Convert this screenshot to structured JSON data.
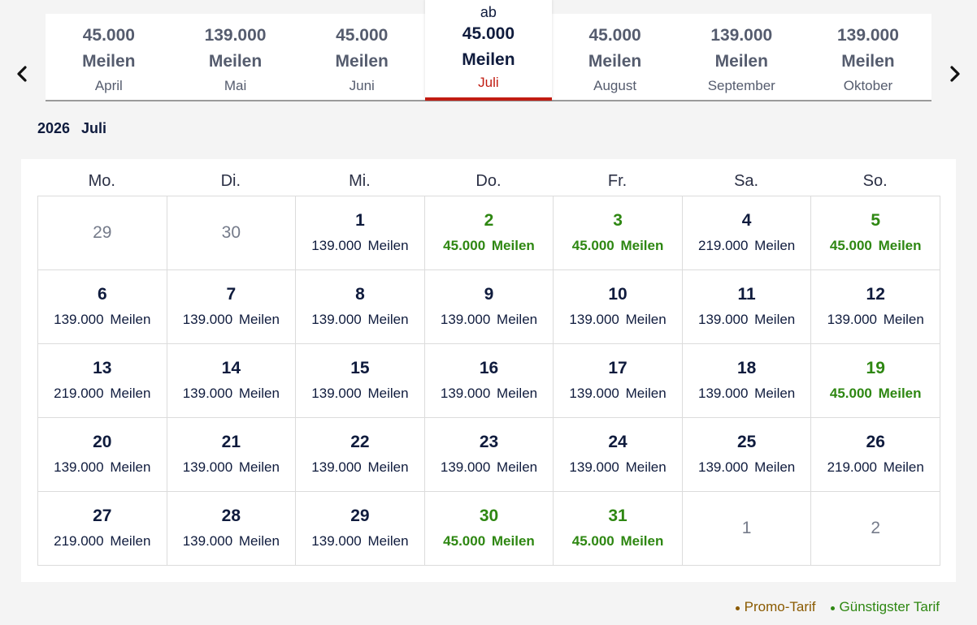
{
  "carousel": {
    "prev_icon": "chevron-left-icon",
    "next_icon": "chevron-right-icon",
    "months": [
      {
        "miles": "45.000",
        "unit": "Meilen",
        "month": "April"
      },
      {
        "miles": "139.000",
        "unit": "Meilen",
        "month": "Mai"
      },
      {
        "miles": "45.000",
        "unit": "Meilen",
        "month": "Juni"
      },
      {
        "prefix": "ab",
        "miles": "45.000",
        "unit": "Meilen",
        "month": "Juli",
        "active": true
      },
      {
        "miles": "45.000",
        "unit": "Meilen",
        "month": "August"
      },
      {
        "miles": "139.000",
        "unit": "Meilen",
        "month": "September"
      },
      {
        "miles": "139.000",
        "unit": "Meilen",
        "month": "Oktober"
      }
    ]
  },
  "calendar": {
    "year": "2026",
    "month": "Juli",
    "weekdays": [
      "Mo.",
      "Di.",
      "Mi.",
      "Do.",
      "Fr.",
      "Sa.",
      "So."
    ],
    "days": [
      {
        "day": "29",
        "other": true
      },
      {
        "day": "30",
        "other": true
      },
      {
        "day": "1",
        "price": "139.000 Meilen"
      },
      {
        "day": "2",
        "price": "45.000 Meilen",
        "cheap": true
      },
      {
        "day": "3",
        "price": "45.000 Meilen",
        "cheap": true
      },
      {
        "day": "4",
        "price": "219.000 Meilen"
      },
      {
        "day": "5",
        "price": "45.000 Meilen",
        "cheap": true
      },
      {
        "day": "6",
        "price": "139.000 Meilen"
      },
      {
        "day": "7",
        "price": "139.000 Meilen"
      },
      {
        "day": "8",
        "price": "139.000 Meilen"
      },
      {
        "day": "9",
        "price": "139.000 Meilen"
      },
      {
        "day": "10",
        "price": "139.000 Meilen"
      },
      {
        "day": "11",
        "price": "139.000 Meilen"
      },
      {
        "day": "12",
        "price": "139.000 Meilen"
      },
      {
        "day": "13",
        "price": "219.000 Meilen"
      },
      {
        "day": "14",
        "price": "139.000 Meilen"
      },
      {
        "day": "15",
        "price": "139.000 Meilen"
      },
      {
        "day": "16",
        "price": "139.000 Meilen"
      },
      {
        "day": "17",
        "price": "139.000 Meilen"
      },
      {
        "day": "18",
        "price": "139.000 Meilen"
      },
      {
        "day": "19",
        "price": "45.000 Meilen",
        "cheap": true
      },
      {
        "day": "20",
        "price": "139.000 Meilen"
      },
      {
        "day": "21",
        "price": "139.000 Meilen"
      },
      {
        "day": "22",
        "price": "139.000 Meilen"
      },
      {
        "day": "23",
        "price": "139.000 Meilen"
      },
      {
        "day": "24",
        "price": "139.000 Meilen"
      },
      {
        "day": "25",
        "price": "139.000 Meilen"
      },
      {
        "day": "26",
        "price": "219.000 Meilen"
      },
      {
        "day": "27",
        "price": "219.000 Meilen"
      },
      {
        "day": "28",
        "price": "139.000 Meilen"
      },
      {
        "day": "29",
        "price": "139.000 Meilen"
      },
      {
        "day": "30",
        "price": "45.000 Meilen",
        "cheap": true
      },
      {
        "day": "31",
        "price": "45.000 Meilen",
        "cheap": true
      },
      {
        "day": "1",
        "other": true
      },
      {
        "day": "2",
        "other": true
      }
    ]
  },
  "legend": [
    {
      "label": "Promo-Tarif",
      "color": "#8a5a00"
    },
    {
      "label": "Günstigster Tarif",
      "color": "#2e8712"
    }
  ],
  "colors": {
    "accent_red": "#c11c12",
    "cheapest_green": "#2e8712",
    "promo_brown": "#8a5a00",
    "text_navy": "#0f1b3d"
  }
}
